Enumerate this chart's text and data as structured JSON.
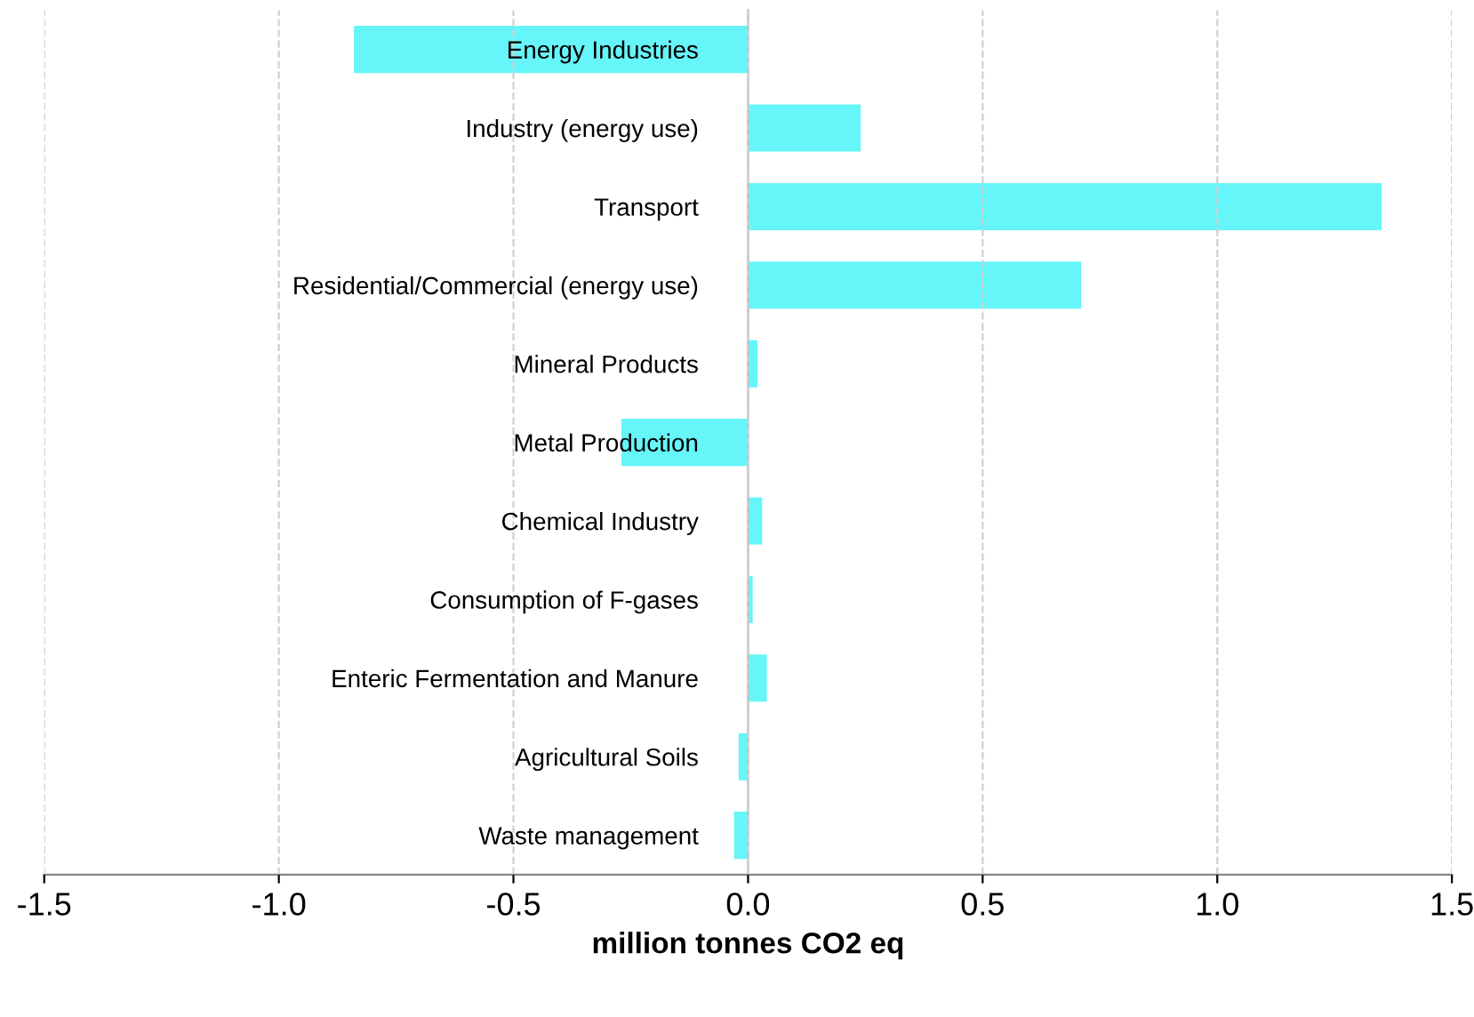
{
  "chart_data": {
    "type": "bar",
    "orientation": "horizontal",
    "xlabel": "million tonnes CO2 eq",
    "categories": [
      "Energy Industries",
      "Industry (energy use)",
      "Transport",
      "Residential/Commercial (energy use)",
      "Mineral Products",
      "Metal Production",
      "Chemical Industry",
      "Consumption of F-gases",
      "Enteric Fermentation and Manure",
      "Agricultural Soils",
      "Waste management"
    ],
    "values": [
      -0.84,
      0.24,
      1.35,
      0.71,
      0.02,
      -0.27,
      0.03,
      0.01,
      0.04,
      -0.02,
      -0.03
    ],
    "color": "#66f5f8",
    "xlim": [
      -1.5,
      1.5
    ],
    "xticks": [
      -1.5,
      {
        "value": -1.0,
        "label": "-1.0"
      },
      -0.5,
      {
        "value": 0.0,
        "label": "0.0"
      },
      0.5,
      {
        "value": 1.0,
        "label": "1.0"
      },
      1.5
    ],
    "grid": "x",
    "legend": false
  }
}
